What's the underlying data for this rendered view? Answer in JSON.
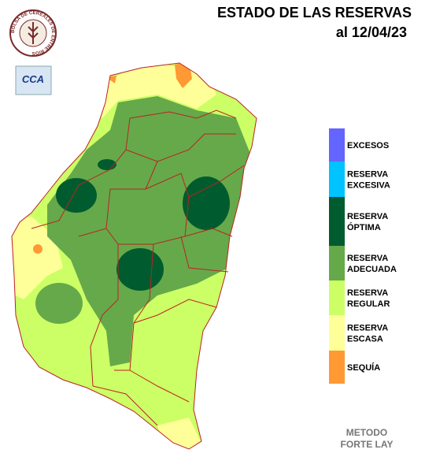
{
  "header": {
    "title": "ESTADO DE LAS RESERVAS",
    "date": "al 12/04/23"
  },
  "logo": {
    "name": "BOLSA DE CEREALES DE ENTRE RIOS",
    "badge": "CCA"
  },
  "legend": {
    "items": [
      {
        "lines": [
          "EXCESOS"
        ],
        "color": "#6464ff"
      },
      {
        "lines": [
          "RESERVA",
          "EXCESIVA"
        ],
        "color": "#00c3ff"
      },
      {
        "lines": [
          "RESERVA",
          "ÓPTIMA"
        ],
        "color": "#005c2e"
      },
      {
        "lines": [
          "RESERVA",
          "ADECUADA"
        ],
        "color": "#66a94a"
      },
      {
        "lines": [
          "RESERVA",
          "REGULAR"
        ],
        "color": "#ccff66"
      },
      {
        "lines": [
          "RESERVA",
          "ESCASA"
        ],
        "color": "#ffff99"
      },
      {
        "lines": [
          "SEQUÍA"
        ],
        "color": "#ff9933"
      }
    ]
  },
  "footer": {
    "lines": [
      "METODO",
      "FORTE LAY"
    ]
  }
}
